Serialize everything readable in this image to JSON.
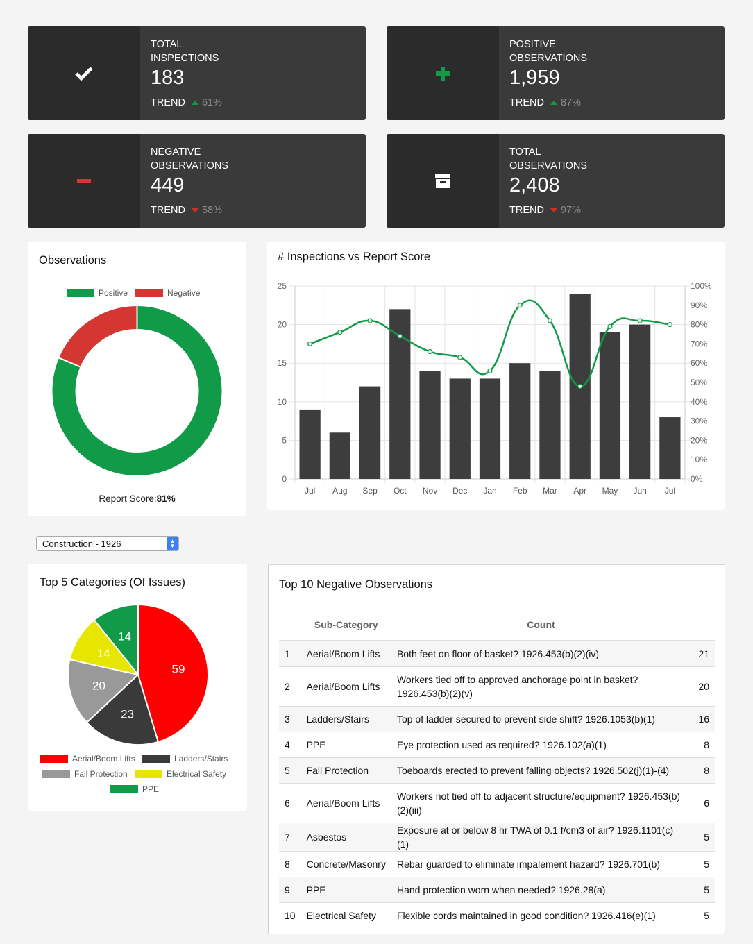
{
  "stats": [
    {
      "label": "Total Inspections",
      "value": "183",
      "trend_label": "TREND",
      "trend_dir": "up",
      "trend_pct": "61%",
      "icon": "check-icon"
    },
    {
      "label": "Positive Observations",
      "value": "1,959",
      "trend_label": "TREND",
      "trend_dir": "up",
      "trend_pct": "87%",
      "icon": "plus-icon"
    },
    {
      "label": "Negative Observations",
      "value": "449",
      "trend_label": "TREND",
      "trend_dir": "down",
      "trend_pct": "58%",
      "icon": "minus-icon"
    },
    {
      "label": "Total Observations",
      "value": "2,408",
      "trend_label": "TREND",
      "trend_dir": "down",
      "trend_pct": "97%",
      "icon": "archive-icon"
    }
  ],
  "colors": {
    "green": "#119a47",
    "red": "#d43732",
    "dark": "#3d3d3d"
  },
  "observations": {
    "title": "Observations",
    "legend": [
      "Positive",
      "Negative"
    ],
    "report_score_label": "Report Score:",
    "report_score_value": "81%"
  },
  "inspections_chart": {
    "title": "# Inspections vs Report Score"
  },
  "selector": {
    "value": "Construction - 1926"
  },
  "categories_chart": {
    "title": "Top 5 Categories (Of Issues)"
  },
  "negatives": {
    "title": "Top 10 Negative Observations",
    "headers": [
      "Sub-Category",
      "Count"
    ],
    "rows": [
      [
        "1",
        "Aerial/Boom Lifts",
        "Both feet on floor of basket? 1926.453(b)(2)(iv)",
        "21"
      ],
      [
        "2",
        "Aerial/Boom Lifts",
        "Workers tied off to approved anchorage point in basket? 1926.453(b)(2)(v)",
        "20"
      ],
      [
        "3",
        "Ladders/Stairs",
        "Top of ladder secured to prevent side shift? 1926.1053(b)(1)",
        "16"
      ],
      [
        "4",
        "PPE",
        "Eye protection used as required? 1926.102(a)(1)",
        "8"
      ],
      [
        "5",
        "Fall Protection",
        "Toeboards erected to prevent falling objects? 1926.502(j)(1)-(4)",
        "8"
      ],
      [
        "6",
        "Aerial/Boom Lifts",
        "Workers not tied off to adjacent structure/equipment? 1926.453(b)(2)(iii)",
        "6"
      ],
      [
        "7",
        "Asbestos",
        "Exposure at or below 8 hr TWA of 0.1 f/cm3 of air? 1926.1101(c)(1)",
        "5"
      ],
      [
        "8",
        "Concrete/Masonry",
        "Rebar guarded to eliminate impalement hazard? 1926.701(b)",
        "5"
      ],
      [
        "9",
        "PPE",
        "Hand protection worn when needed? 1926.28(a)",
        "5"
      ],
      [
        "10",
        "Electrical Safety",
        "Flexible cords maintained in good condition? 1926.416(e)(1)",
        "5"
      ]
    ]
  },
  "chart_data": [
    {
      "type": "pie",
      "title": "Observations",
      "labels": [
        "Positive",
        "Negative"
      ],
      "values": [
        1959,
        449
      ],
      "colors": [
        "#119a47",
        "#d43732"
      ],
      "donut": true,
      "legend": "top"
    },
    {
      "type": "bar",
      "title": "# Inspections vs Report Score",
      "categories": [
        "Jul",
        "Aug",
        "Sep",
        "Oct",
        "Nov",
        "Dec",
        "Jan",
        "Feb",
        "Mar",
        "Apr",
        "May",
        "Jun",
        "Jul"
      ],
      "series": [
        {
          "type": "bar",
          "axis": "left",
          "color": "#3d3d3d",
          "values": [
            9,
            6,
            12,
            22,
            14,
            13,
            13,
            15,
            14,
            24,
            19,
            20,
            8
          ]
        },
        {
          "type": "line",
          "axis": "right",
          "color": "#119a47",
          "values": [
            70,
            76,
            82,
            74,
            66,
            63,
            56,
            90,
            82,
            48,
            79,
            82,
            80
          ]
        }
      ],
      "yleft": {
        "min": 0,
        "max": 25,
        "ticks": [
          0,
          5,
          10,
          15,
          20,
          25
        ]
      },
      "yright": {
        "min": 0,
        "max": 100,
        "ticks": [
          "0%",
          "10%",
          "20%",
          "30%",
          "40%",
          "50%",
          "60%",
          "70%",
          "80%",
          "90%",
          "100%"
        ]
      },
      "grid": true
    },
    {
      "type": "pie",
      "title": "Top 5 Categories (Of Issues)",
      "labels": [
        "Aerial/Boom Lifts",
        "Ladders/Stairs",
        "Fall Protection",
        "Electrical Safety",
        "PPE"
      ],
      "values": [
        59,
        23,
        20,
        14,
        14
      ],
      "colors": [
        "#ff0000",
        "#3a3a3a",
        "#999999",
        "#e6e600",
        "#119a47"
      ],
      "legend": "bottom"
    }
  ]
}
